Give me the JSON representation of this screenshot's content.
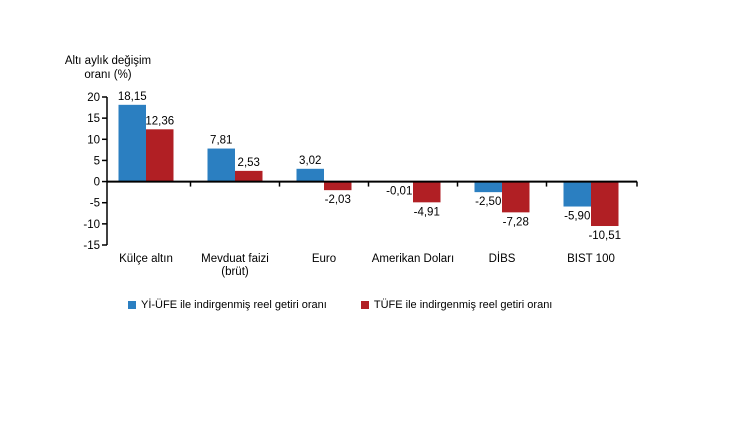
{
  "page": {
    "background": "#ffffff"
  },
  "chart_data": {
    "type": "bar",
    "title": "",
    "xlabel": "",
    "ylabel": "Altı aylık değişim oranı (%)",
    "ylabel_lines": [
      "Altı aylık değişim",
      "oranı (%)"
    ],
    "ylim": [
      -15,
      20
    ],
    "ytick_step": 5,
    "yticks": [
      20,
      15,
      10,
      5,
      0,
      -5,
      -10,
      -15
    ],
    "grid": false,
    "legend_position": "bottom",
    "categories": [
      "Külçe altın",
      "Mevduat faizi\n(brüt)",
      "Euro",
      "Amerikan Doları",
      "DİBS",
      "BIST 100"
    ],
    "series": [
      {
        "name": "Yİ-ÜFE ile indirgenmiş reel getiri oranı",
        "color": "#2b7fc1",
        "values": [
          18.15,
          7.81,
          3.02,
          -0.01,
          -2.5,
          -5.9
        ],
        "value_labels": [
          "18,15",
          "7,81",
          "3,02",
          "-0,01",
          "-2,50",
          "-5,90"
        ]
      },
      {
        "name": "TÜFE ile indirgenmiş reel getiri oranı",
        "color": "#b11f24",
        "values": [
          12.36,
          2.53,
          -2.03,
          -4.91,
          -7.28,
          -10.51
        ],
        "value_labels": [
          "12,36",
          "2,53",
          "-2,03",
          "-4,91",
          "-7,28",
          "-10,51"
        ]
      }
    ],
    "axis_color": "#000000",
    "text_color": "#000000"
  }
}
